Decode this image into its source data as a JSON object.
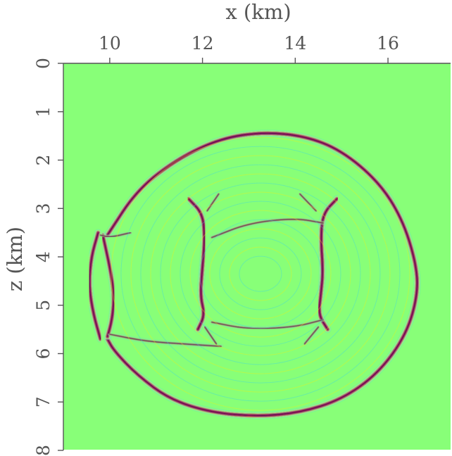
{
  "chart_data": {
    "type": "heatmap",
    "title": "",
    "xlabel": "x (km)",
    "ylabel": "z (km)",
    "xlim": [
      9.0,
      17.35
    ],
    "ylim": [
      0,
      8
    ],
    "x_axis_position": "top",
    "y_axis_direction": "down",
    "grid": false,
    "legend": "none",
    "x_ticks": [
      {
        "value": 10,
        "label": "10"
      },
      {
        "value": 12,
        "label": "12"
      },
      {
        "value": 14,
        "label": "14"
      },
      {
        "value": 16,
        "label": "16"
      }
    ],
    "y_ticks": [
      {
        "value": 0,
        "label": "0"
      },
      {
        "value": 1,
        "label": "1"
      },
      {
        "value": 2,
        "label": "2"
      },
      {
        "value": 3,
        "label": "3"
      },
      {
        "value": 4,
        "label": "4"
      },
      {
        "value": 5,
        "label": "5"
      },
      {
        "value": 6,
        "label": "6"
      },
      {
        "value": 7,
        "label": "7"
      },
      {
        "value": 8,
        "label": "8"
      }
    ],
    "colormap": {
      "background": "#88ff78",
      "positive": [
        "#fff000",
        "#ff3000",
        "#a00000"
      ],
      "negative": [
        "#30d0f0",
        "#1030c0",
        "#000060"
      ]
    },
    "wavefront_events": [
      {
        "name": "outer-envelope",
        "points": [
          [
            9.95,
            3.55
          ],
          [
            10.6,
            2.6
          ],
          [
            11.5,
            1.95
          ],
          [
            12.4,
            1.55
          ],
          [
            13.3,
            1.42
          ],
          [
            14.2,
            1.5
          ],
          [
            15.0,
            1.8
          ],
          [
            15.8,
            2.45
          ],
          [
            16.3,
            3.2
          ],
          [
            16.6,
            4.1
          ],
          [
            16.65,
            4.75
          ],
          [
            16.4,
            5.6
          ],
          [
            15.8,
            6.4
          ],
          [
            15.0,
            6.95
          ],
          [
            14.1,
            7.22
          ],
          [
            13.2,
            7.3
          ],
          [
            12.2,
            7.22
          ],
          [
            11.3,
            6.95
          ],
          [
            10.6,
            6.45
          ],
          [
            10.1,
            5.95
          ],
          [
            9.95,
            5.7
          ]
        ]
      },
      {
        "name": "left-cusp",
        "points": [
          [
            9.75,
            3.5
          ],
          [
            9.6,
            4.0
          ],
          [
            9.55,
            4.6
          ],
          [
            9.65,
            5.2
          ],
          [
            9.8,
            5.7
          ]
        ]
      },
      {
        "name": "left-inner",
        "points": [
          [
            9.85,
            3.55
          ],
          [
            10.0,
            4.2
          ],
          [
            10.1,
            4.8
          ],
          [
            10.05,
            5.3
          ],
          [
            9.95,
            5.65
          ]
        ]
      },
      {
        "name": "left-fold",
        "points": [
          [
            10.45,
            3.5
          ],
          [
            10.0,
            3.6
          ],
          [
            9.8,
            3.55
          ]
        ]
      },
      {
        "name": "lower-fold",
        "points": [
          [
            10.0,
            5.6
          ],
          [
            10.8,
            5.75
          ],
          [
            11.6,
            5.8
          ],
          [
            12.4,
            5.85
          ]
        ]
      },
      {
        "name": "diffractor-left-a",
        "points": [
          [
            11.7,
            2.8
          ],
          [
            12.0,
            3.1
          ],
          [
            12.05,
            3.6
          ],
          [
            12.0,
            4.2
          ],
          [
            11.95,
            4.8
          ],
          [
            12.05,
            5.2
          ],
          [
            11.9,
            5.5
          ]
        ]
      },
      {
        "name": "diffractor-left-b",
        "points": [
          [
            12.35,
            2.7
          ],
          [
            12.1,
            3.05
          ]
        ]
      },
      {
        "name": "diffractor-left-c",
        "points": [
          [
            12.3,
            5.8
          ],
          [
            12.05,
            5.45
          ]
        ]
      },
      {
        "name": "diffractor-right-a",
        "points": [
          [
            14.9,
            2.8
          ],
          [
            14.6,
            3.1
          ],
          [
            14.55,
            3.6
          ],
          [
            14.6,
            4.3
          ],
          [
            14.55,
            4.8
          ],
          [
            14.5,
            5.2
          ],
          [
            14.7,
            5.5
          ]
        ]
      },
      {
        "name": "diffractor-right-b",
        "points": [
          [
            14.1,
            2.7
          ],
          [
            14.45,
            3.05
          ]
        ]
      },
      {
        "name": "diffractor-right-c",
        "points": [
          [
            14.2,
            5.8
          ],
          [
            14.5,
            5.45
          ]
        ]
      },
      {
        "name": "inner-arc-top",
        "points": [
          [
            12.2,
            3.6
          ],
          [
            13.0,
            3.3
          ],
          [
            14.0,
            3.2
          ],
          [
            14.6,
            3.3
          ]
        ]
      },
      {
        "name": "inner-arc-bottom",
        "points": [
          [
            12.2,
            5.35
          ],
          [
            13.0,
            5.5
          ],
          [
            14.0,
            5.45
          ],
          [
            14.6,
            5.3
          ]
        ]
      }
    ]
  }
}
